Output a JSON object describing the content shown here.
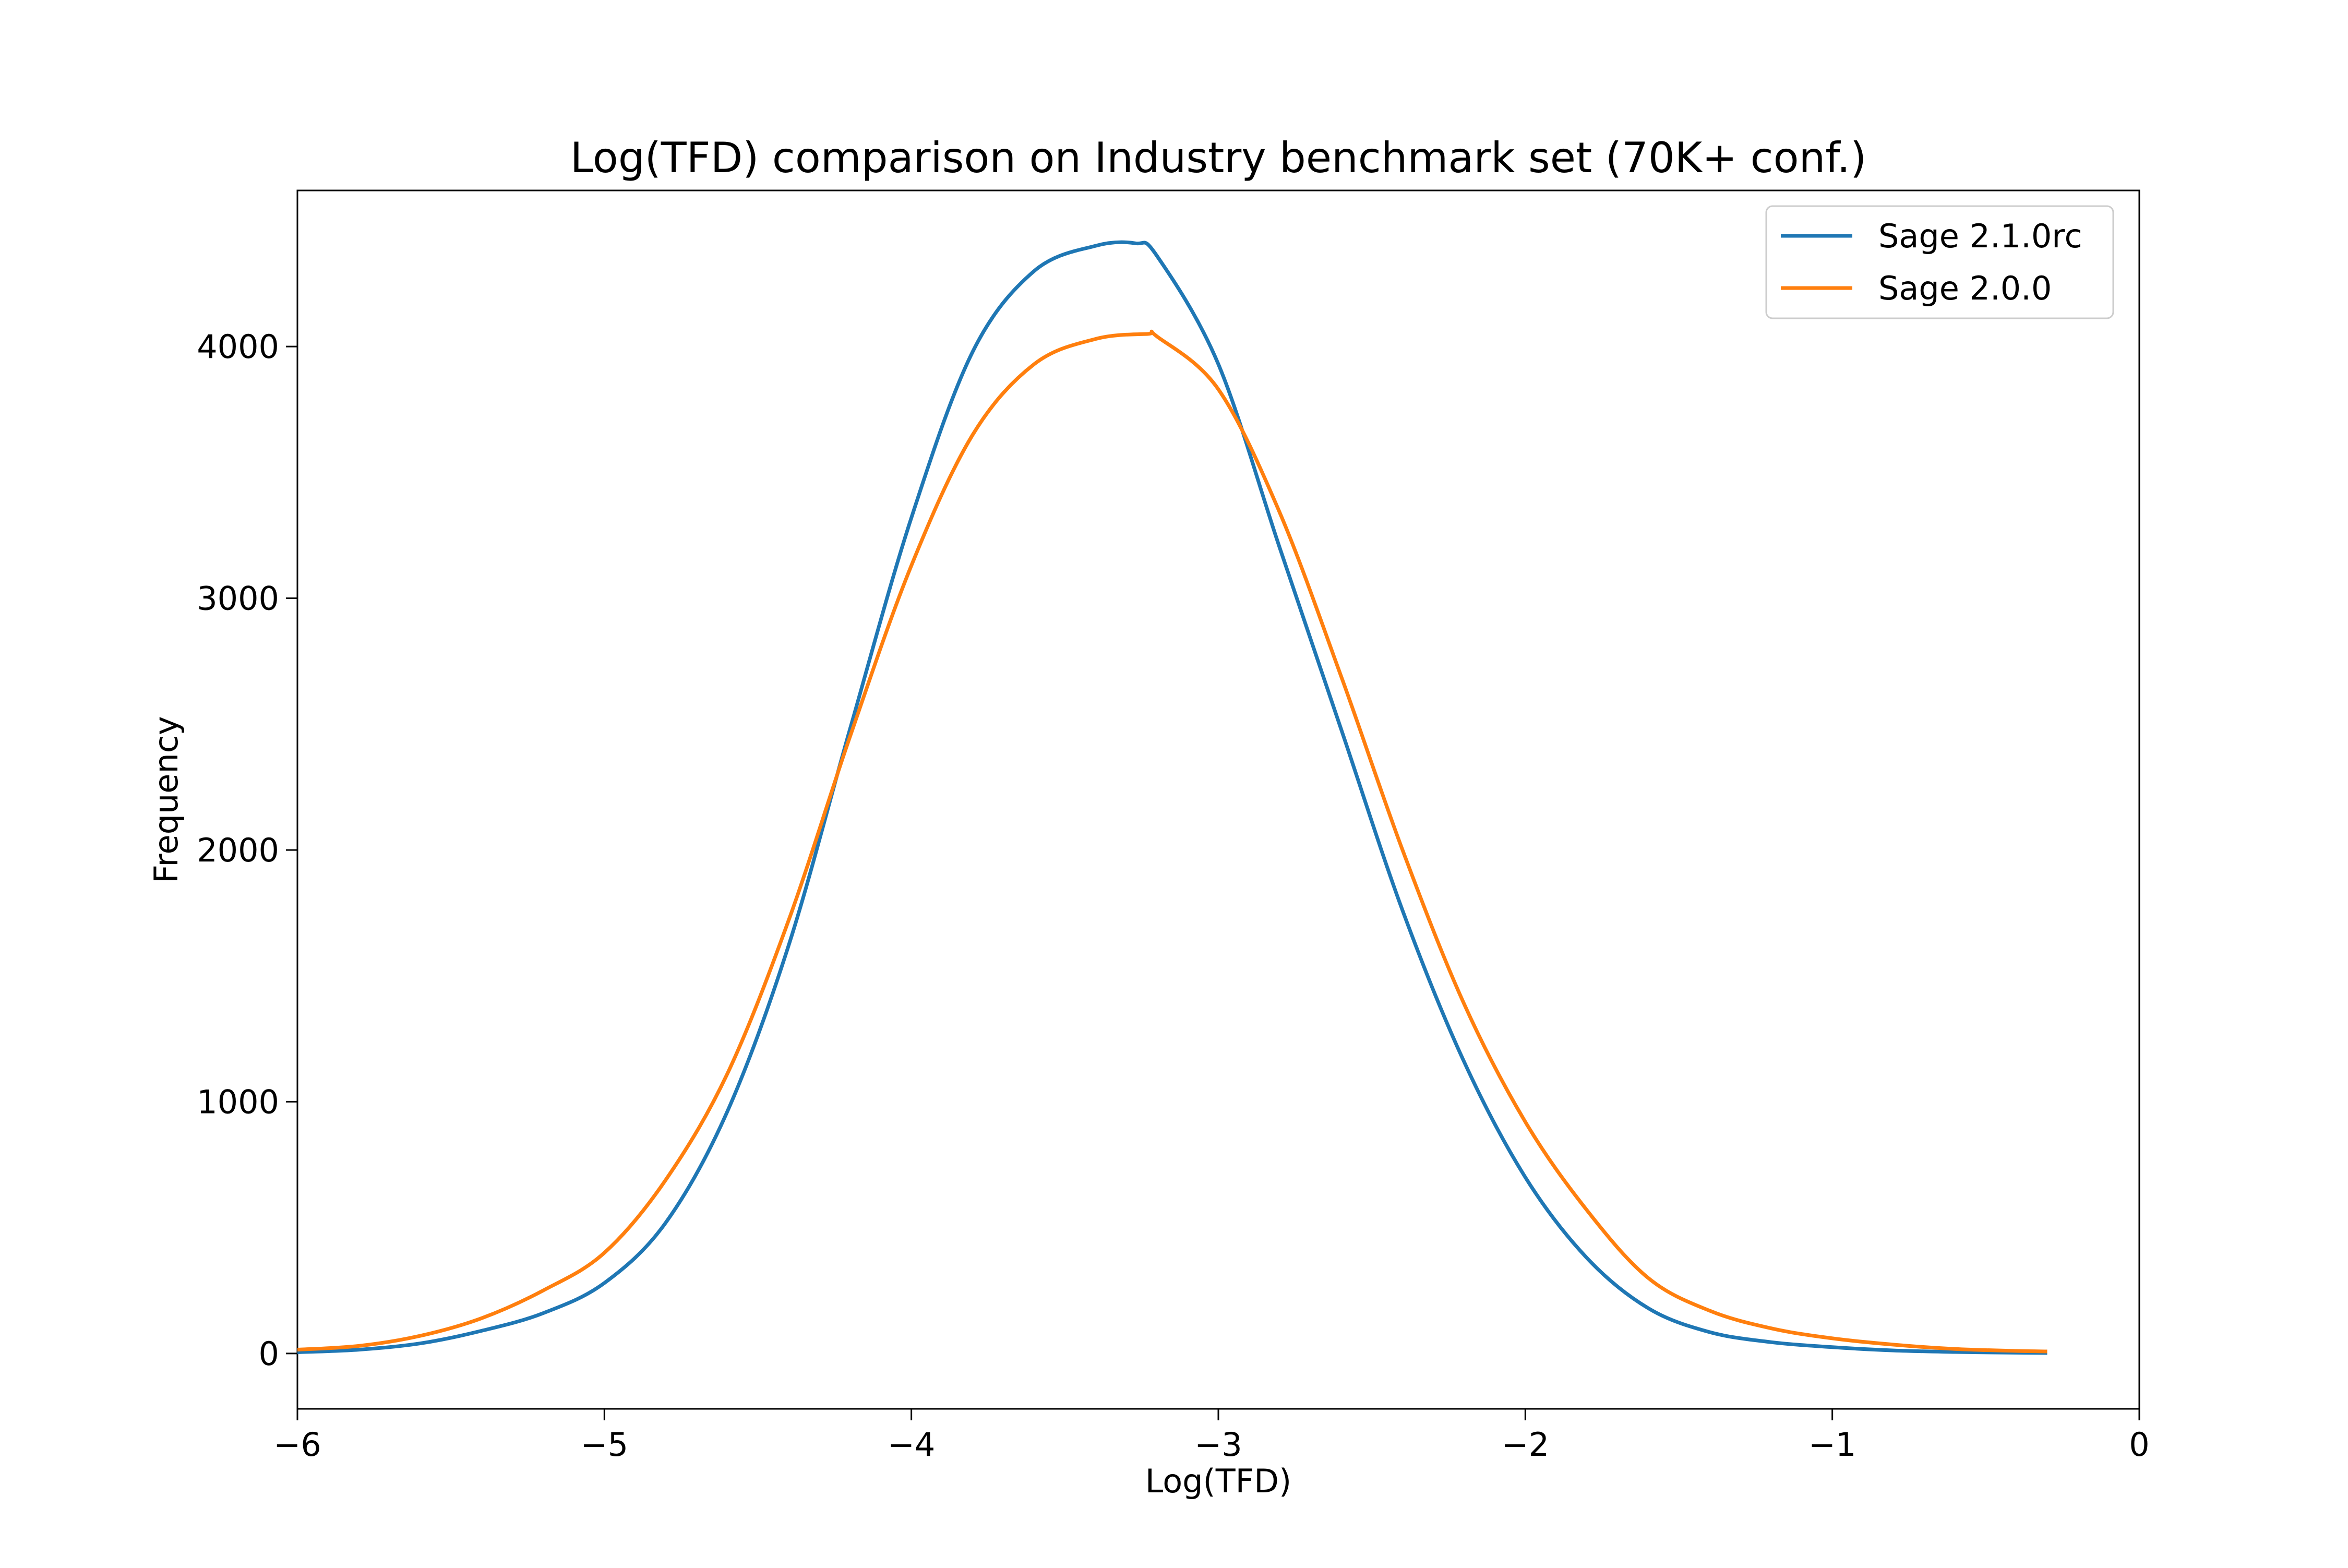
{
  "chart_data": {
    "type": "line",
    "title": "Log(TFD) comparison on Industry benchmark set (70K+ conf.)",
    "xlabel": "Log(TFD)",
    "ylabel": "Frequency",
    "xlim": [
      -6,
      0
    ],
    "ylim": [
      -220,
      4620
    ],
    "x_ticks": [
      -6,
      -5,
      -4,
      -3,
      -2,
      -1,
      0
    ],
    "x_tick_labels": [
      "−6",
      "−5",
      "−4",
      "−3",
      "−2",
      "−1",
      "0"
    ],
    "y_ticks": [
      0,
      1000,
      2000,
      3000,
      4000
    ],
    "y_tick_labels": [
      "0",
      "1000",
      "2000",
      "3000",
      "4000"
    ],
    "grid": false,
    "legend_position": "top-right",
    "series": [
      {
        "name": "Sage 2.1.0rc",
        "color": "#1f77b4",
        "x": [
          -6.0,
          -5.8,
          -5.6,
          -5.4,
          -5.2,
          -5.0,
          -4.8,
          -4.6,
          -4.4,
          -4.2,
          -4.0,
          -3.8,
          -3.6,
          -3.4,
          -3.27,
          -3.2,
          -3.0,
          -2.8,
          -2.6,
          -2.4,
          -2.2,
          -2.0,
          -1.8,
          -1.6,
          -1.4,
          -1.2,
          -1.0,
          -0.8,
          -0.6,
          -0.4,
          -0.3
        ],
        "y": [
          5,
          15,
          40,
          90,
          160,
          280,
          520,
          960,
          1620,
          2480,
          3320,
          3980,
          4300,
          4400,
          4410,
          4360,
          3930,
          3200,
          2480,
          1760,
          1160,
          700,
          380,
          180,
          85,
          45,
          25,
          12,
          6,
          3,
          2
        ]
      },
      {
        "name": "Sage 2.0.0",
        "color": "#ff7f0e",
        "x": [
          -6.0,
          -5.8,
          -5.6,
          -5.4,
          -5.2,
          -5.0,
          -4.8,
          -4.6,
          -4.4,
          -4.2,
          -4.0,
          -3.8,
          -3.6,
          -3.4,
          -3.23,
          -3.2,
          -3.0,
          -2.8,
          -2.6,
          -2.4,
          -2.2,
          -2.0,
          -1.8,
          -1.6,
          -1.4,
          -1.2,
          -1.0,
          -0.8,
          -0.6,
          -0.4,
          -0.3
        ],
        "y": [
          15,
          30,
          70,
          140,
          250,
          400,
          690,
          1110,
          1720,
          2450,
          3130,
          3650,
          3930,
          4030,
          4050,
          4040,
          3830,
          3340,
          2690,
          2000,
          1390,
          920,
          570,
          300,
          170,
          100,
          60,
          35,
          18,
          10,
          8
        ]
      }
    ]
  }
}
